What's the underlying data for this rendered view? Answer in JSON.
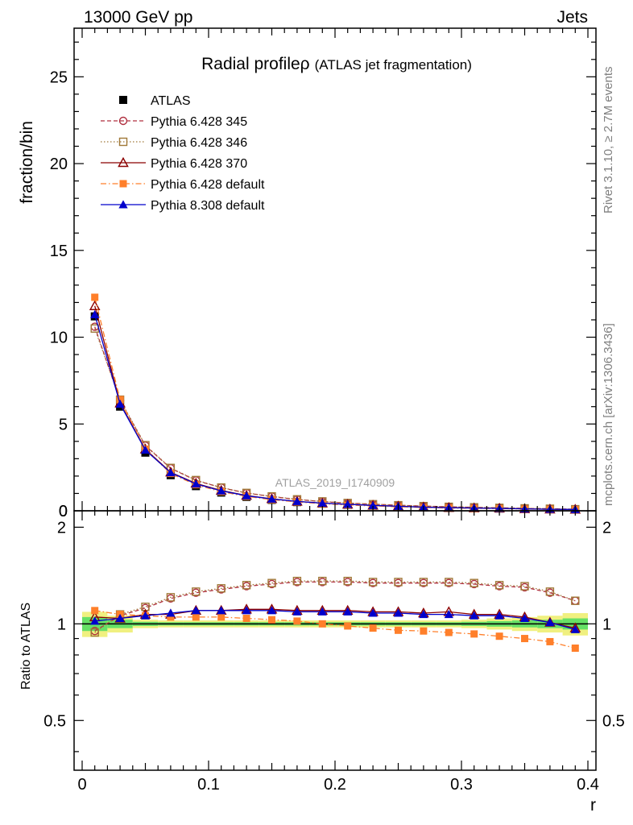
{
  "header": {
    "left": "13000 GeV pp",
    "right": "Jets"
  },
  "side_notes": {
    "top": "Rivet 3.1.10, ≥ 2.7M events",
    "bottom": "mcplots.cern.ch [arXiv:1306.3436]"
  },
  "watermark": "ATLAS_2019_I1740909",
  "chart_data": [
    {
      "type": "line",
      "panel": "main",
      "title": "Radial profile",
      "title_symbol": "ρ",
      "subtitle": "(ATLAS jet fragmentation)",
      "ylabel": "fraction/bin",
      "xlabel": "",
      "xlim": [
        0.0,
        0.4
      ],
      "ylim": [
        0,
        27.8
      ],
      "yticks": [
        0,
        5,
        10,
        15,
        20,
        25
      ],
      "ytick_labels": [
        "0",
        "5",
        "10",
        "15",
        "20",
        "25"
      ],
      "legend_position": "top-left",
      "x": [
        0.01,
        0.03,
        0.05,
        0.07,
        0.09,
        0.11,
        0.13,
        0.15,
        0.17,
        0.19,
        0.21,
        0.23,
        0.25,
        0.27,
        0.29,
        0.31,
        0.33,
        0.35,
        0.37,
        0.39
      ],
      "series": [
        {
          "name": "ATLAS",
          "color": "#000000",
          "marker": "square-filled",
          "line": "none",
          "values": [
            11.2,
            6.0,
            3.35,
            2.05,
            1.42,
            1.05,
            0.8,
            0.63,
            0.5,
            0.41,
            0.34,
            0.29,
            0.24,
            0.2,
            0.17,
            0.15,
            0.13,
            0.11,
            0.09,
            0.08
          ]
        },
        {
          "name": "Pythia 6.428 345",
          "color": "#b03040",
          "marker": "circle-open",
          "line": "dashed",
          "values": [
            10.6,
            6.35,
            3.75,
            2.45,
            1.75,
            1.33,
            1.02,
            0.82,
            0.65,
            0.53,
            0.44,
            0.38,
            0.32,
            0.27,
            0.23,
            0.2,
            0.17,
            0.14,
            0.12,
            0.09
          ]
        },
        {
          "name": "Pythia 6.428 346",
          "color": "#a07838",
          "marker": "square-open",
          "line": "dotted",
          "values": [
            10.5,
            6.4,
            3.78,
            2.47,
            1.77,
            1.34,
            1.03,
            0.83,
            0.66,
            0.54,
            0.45,
            0.38,
            0.32,
            0.27,
            0.23,
            0.2,
            0.17,
            0.14,
            0.12,
            0.09
          ]
        },
        {
          "name": "Pythia 6.428 370",
          "color": "#8b0000",
          "marker": "triangle-open",
          "line": "solid",
          "values": [
            11.8,
            6.2,
            3.55,
            2.22,
            1.58,
            1.17,
            0.88,
            0.69,
            0.54,
            0.44,
            0.37,
            0.31,
            0.26,
            0.21,
            0.18,
            0.16,
            0.14,
            0.11,
            0.09,
            0.08
          ]
        },
        {
          "name": "Pythia 6.428 default",
          "color": "#ff7f2a",
          "marker": "square-filled",
          "line": "dashdot",
          "values": [
            12.3,
            6.4,
            3.55,
            2.15,
            1.5,
            1.1,
            0.83,
            0.64,
            0.51,
            0.41,
            0.33,
            0.28,
            0.23,
            0.19,
            0.16,
            0.14,
            0.12,
            0.1,
            0.08,
            0.067
          ]
        },
        {
          "name": "Pythia 8.308 default",
          "color": "#0000cc",
          "marker": "triangle-filled",
          "line": "solid",
          "values": [
            11.3,
            6.15,
            3.5,
            2.2,
            1.55,
            1.15,
            0.87,
            0.68,
            0.54,
            0.44,
            0.37,
            0.31,
            0.26,
            0.21,
            0.18,
            0.16,
            0.14,
            0.11,
            0.09,
            0.077
          ]
        }
      ]
    },
    {
      "type": "line",
      "panel": "ratio",
      "ylabel": "Ratio to ATLAS",
      "xlabel": "r",
      "xlim": [
        0.0,
        0.4
      ],
      "ylim": [
        0.35,
        2.25
      ],
      "yticks": [
        0.5,
        1,
        2
      ],
      "ytick_labels": [
        "0.5",
        "1",
        "2"
      ],
      "xticks": [
        0,
        0.1,
        0.2,
        0.3,
        0.4
      ],
      "xtick_labels": [
        "0",
        "0.1",
        "0.2",
        "0.3",
        "0.4"
      ],
      "reference_line": 1.0,
      "uncertainty_band": {
        "x_edges": [
          0.0,
          0.02,
          0.04,
          0.06,
          0.08,
          0.1,
          0.12,
          0.14,
          0.16,
          0.18,
          0.2,
          0.22,
          0.24,
          0.26,
          0.28,
          0.3,
          0.32,
          0.34,
          0.36,
          0.38,
          0.4
        ],
        "stat_half_width": [
          0.05,
          0.03,
          0.015,
          0.012,
          0.012,
          0.012,
          0.012,
          0.012,
          0.012,
          0.012,
          0.012,
          0.012,
          0.012,
          0.012,
          0.012,
          0.015,
          0.02,
          0.025,
          0.03,
          0.04
        ],
        "total_half_width": [
          0.09,
          0.06,
          0.03,
          0.025,
          0.025,
          0.025,
          0.025,
          0.025,
          0.025,
          0.025,
          0.025,
          0.025,
          0.025,
          0.025,
          0.025,
          0.03,
          0.04,
          0.05,
          0.06,
          0.08
        ],
        "stat_color": "#66e066",
        "total_color": "#f0f080"
      },
      "x": [
        0.01,
        0.03,
        0.05,
        0.07,
        0.09,
        0.11,
        0.13,
        0.15,
        0.17,
        0.19,
        0.21,
        0.23,
        0.25,
        0.27,
        0.29,
        0.31,
        0.33,
        0.35,
        0.37,
        0.39
      ],
      "series": [
        {
          "name": "Pythia 6.428 345",
          "color": "#b03040",
          "marker": "circle-open",
          "line": "dashed",
          "values": [
            0.95,
            1.06,
            1.12,
            1.2,
            1.25,
            1.28,
            1.31,
            1.33,
            1.35,
            1.35,
            1.35,
            1.34,
            1.34,
            1.34,
            1.34,
            1.33,
            1.31,
            1.3,
            1.25,
            1.18
          ]
        },
        {
          "name": "Pythia 6.428 346",
          "color": "#a07838",
          "marker": "square-open",
          "line": "dotted",
          "values": [
            0.94,
            1.07,
            1.13,
            1.21,
            1.26,
            1.29,
            1.32,
            1.34,
            1.36,
            1.36,
            1.36,
            1.35,
            1.35,
            1.35,
            1.35,
            1.34,
            1.32,
            1.31,
            1.26,
            1.18
          ]
        },
        {
          "name": "Pythia 6.428 370",
          "color": "#8b0000",
          "marker": "triangle-open",
          "line": "solid",
          "values": [
            1.05,
            1.04,
            1.07,
            1.07,
            1.1,
            1.1,
            1.11,
            1.11,
            1.1,
            1.1,
            1.1,
            1.09,
            1.09,
            1.08,
            1.09,
            1.07,
            1.07,
            1.05,
            1.01,
            0.97
          ]
        },
        {
          "name": "Pythia 6.428 default",
          "color": "#ff7f2a",
          "marker": "square-filled",
          "line": "dashdot",
          "values": [
            1.1,
            1.07,
            1.06,
            1.05,
            1.05,
            1.05,
            1.04,
            1.03,
            1.02,
            1.0,
            0.985,
            0.97,
            0.955,
            0.95,
            0.94,
            0.93,
            0.915,
            0.9,
            0.88,
            0.84
          ]
        },
        {
          "name": "Pythia 8.308 default",
          "color": "#0000cc",
          "marker": "triangle-filled",
          "line": "solid",
          "values": [
            1.02,
            1.04,
            1.06,
            1.08,
            1.1,
            1.1,
            1.1,
            1.1,
            1.09,
            1.09,
            1.09,
            1.08,
            1.08,
            1.07,
            1.07,
            1.06,
            1.06,
            1.04,
            1.01,
            0.96
          ]
        }
      ]
    }
  ]
}
